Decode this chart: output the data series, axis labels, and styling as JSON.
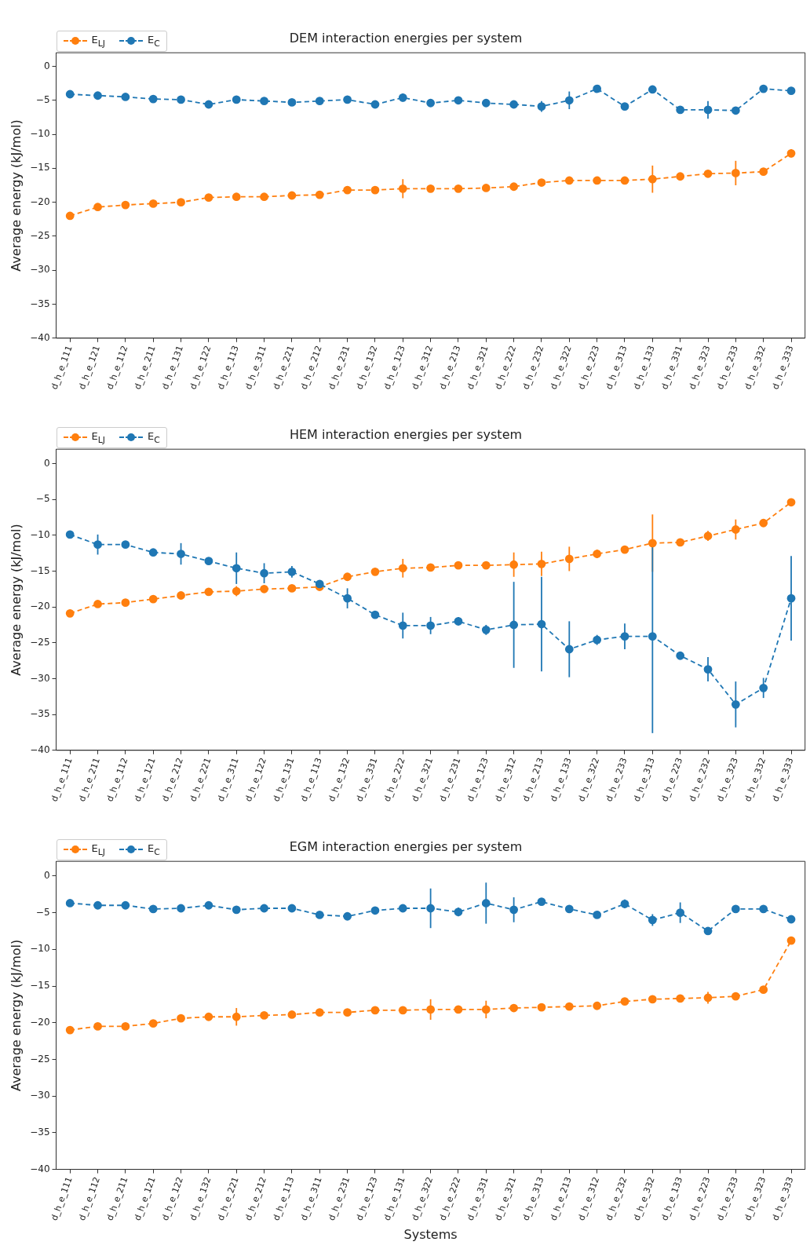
{
  "chart_data": [
    {
      "type": "line",
      "title": "DEM interaction energies per system",
      "ylabel": "Average energy (kJ/mol)",
      "legend": "top left",
      "marker": "circle",
      "line_style": "dashed",
      "ylim": [
        -40,
        2
      ],
      "yticks": [
        0,
        -5,
        -10,
        -15,
        -20,
        -25,
        -30,
        -35,
        -40
      ],
      "categories": [
        "d_h_e_111",
        "d_h_e_121",
        "d_h_e_112",
        "d_h_e_211",
        "d_h_e_131",
        "d_h_e_122",
        "d_h_e_113",
        "d_h_e_311",
        "d_h_e_221",
        "d_h_e_212",
        "d_h_e_231",
        "d_h_e_132",
        "d_h_e_123",
        "d_h_e_312",
        "d_h_e_213",
        "d_h_e_321",
        "d_h_e_222",
        "d_h_e_232",
        "d_h_e_322",
        "d_h_e_223",
        "d_h_e_313",
        "d_h_e_133",
        "d_h_e_331",
        "d_h_e_323",
        "d_h_e_233",
        "d_h_e_332",
        "d_h_e_333"
      ],
      "series": [
        {
          "name": "E$_{LJ}$",
          "color": "#ff7f0e",
          "values": [
            -22.0,
            -20.7,
            -20.4,
            -20.2,
            -20.0,
            -19.3,
            -19.2,
            -19.2,
            -19.0,
            -18.9,
            -18.2,
            -18.2,
            -18.0,
            -18.0,
            -18.0,
            -17.9,
            -17.7,
            -17.1,
            -16.8,
            -16.8,
            -16.8,
            -16.6,
            -16.2,
            -15.8,
            -15.7,
            -15.5,
            -12.8
          ],
          "errors": [
            null,
            null,
            null,
            null,
            null,
            null,
            null,
            null,
            null,
            null,
            null,
            null,
            1.4,
            null,
            null,
            null,
            null,
            null,
            null,
            null,
            null,
            2.0,
            null,
            null,
            1.8,
            null,
            0.6
          ]
        },
        {
          "name": "E$_{C}$",
          "color": "#1f77b4",
          "values": [
            -4.1,
            -4.3,
            -4.5,
            -4.8,
            -4.9,
            -5.6,
            -4.9,
            -5.1,
            -5.3,
            -5.1,
            -4.9,
            -5.6,
            -4.6,
            -5.4,
            -5.0,
            -5.4,
            -5.6,
            -5.9,
            -5.0,
            -3.3,
            -5.9,
            -3.4,
            -6.4,
            -6.4,
            -6.5,
            -3.3,
            -3.6
          ],
          "errors": [
            null,
            null,
            null,
            null,
            null,
            null,
            0.5,
            null,
            null,
            null,
            null,
            null,
            0.6,
            null,
            null,
            null,
            null,
            0.8,
            1.3,
            null,
            null,
            null,
            null,
            1.3,
            null,
            null,
            null
          ]
        }
      ]
    },
    {
      "type": "line",
      "title": "HEM interaction energies per system",
      "ylabel": "Average energy (kJ/mol)",
      "legend": "top left",
      "marker": "circle",
      "line_style": "dashed",
      "ylim": [
        -40,
        2
      ],
      "yticks": [
        0,
        -5,
        -10,
        -15,
        -20,
        -25,
        -30,
        -35,
        -40
      ],
      "categories": [
        "d_h_e_111",
        "d_h_e_211",
        "d_h_e_112",
        "d_h_e_121",
        "d_h_e_212",
        "d_h_e_221",
        "d_h_e_311",
        "d_h_e_122",
        "d_h_e_131",
        "d_h_e_113",
        "d_h_e_132",
        "d_h_e_331",
        "d_h_e_222",
        "d_h_e_321",
        "d_h_e_231",
        "d_h_e_123",
        "d_h_e_312",
        "d_h_e_213",
        "d_h_e_133",
        "d_h_e_322",
        "d_h_e_233",
        "d_h_e_313",
        "d_h_e_223",
        "d_h_e_232",
        "d_h_e_323",
        "d_h_e_332",
        "d_h_e_333"
      ],
      "series": [
        {
          "name": "E$_{LJ}$",
          "color": "#ff7f0e",
          "values": [
            -20.9,
            -19.6,
            -19.4,
            -18.9,
            -18.4,
            -17.9,
            -17.8,
            -17.5,
            -17.4,
            -17.2,
            -15.8,
            -15.1,
            -14.6,
            -14.5,
            -14.2,
            -14.2,
            -14.1,
            -14.0,
            -13.3,
            -12.6,
            -12.0,
            -11.1,
            -11.0,
            -10.1,
            -9.2,
            -8.3,
            -5.4
          ],
          "errors": [
            null,
            null,
            null,
            null,
            null,
            null,
            0.7,
            null,
            null,
            null,
            null,
            null,
            1.3,
            null,
            null,
            null,
            1.7,
            1.7,
            1.7,
            0.6,
            null,
            4.0,
            null,
            0.7,
            1.4,
            null,
            null
          ]
        },
        {
          "name": "E$_{C}$",
          "color": "#1f77b4",
          "values": [
            -9.9,
            -11.3,
            -11.3,
            -12.4,
            -12.6,
            -13.6,
            -14.6,
            -15.3,
            -15.1,
            -16.8,
            -18.8,
            -21.1,
            -22.6,
            -22.6,
            -22.0,
            -23.2,
            -22.5,
            -22.4,
            -25.9,
            -24.6,
            -24.1,
            -24.1,
            -26.8,
            -28.7,
            -33.6,
            -31.3,
            -18.8
          ],
          "errors": [
            null,
            1.4,
            null,
            null,
            1.5,
            null,
            2.2,
            1.4,
            0.8,
            null,
            1.4,
            null,
            1.8,
            1.2,
            0.6,
            0.7,
            6.0,
            6.6,
            3.9,
            0.7,
            1.8,
            13.5,
            0.5,
            1.7,
            3.2,
            1.4,
            5.9
          ]
        }
      ]
    },
    {
      "type": "line",
      "title": "EGM interaction energies per system",
      "ylabel": "Average energy (kJ/mol)",
      "xlabel": "Systems",
      "legend": "top left",
      "marker": "circle",
      "line_style": "dashed",
      "ylim": [
        -40,
        2
      ],
      "yticks": [
        0,
        -5,
        -10,
        -15,
        -20,
        -25,
        -30,
        -35,
        -40
      ],
      "categories": [
        "d_h_e_111",
        "d_h_e_112",
        "d_h_e_211",
        "d_h_e_121",
        "d_h_e_122",
        "d_h_e_132",
        "d_h_e_221",
        "d_h_e_212",
        "d_h_e_113",
        "d_h_e_311",
        "d_h_e_231",
        "d_h_e_123",
        "d_h_e_131",
        "d_h_e_322",
        "d_h_e_222",
        "d_h_e_331",
        "d_h_e_321",
        "d_h_e_313",
        "d_h_e_213",
        "d_h_e_312",
        "d_h_e_232",
        "d_h_e_332",
        "d_h_e_133",
        "d_h_e_223",
        "d_h_e_233",
        "d_h_e_323",
        "d_h_e_333"
      ],
      "series": [
        {
          "name": "E$_{LJ}$",
          "color": "#ff7f0e",
          "values": [
            -21.0,
            -20.5,
            -20.5,
            -20.1,
            -19.4,
            -19.2,
            -19.2,
            -19.0,
            -18.9,
            -18.6,
            -18.6,
            -18.3,
            -18.3,
            -18.2,
            -18.2,
            -18.2,
            -18.0,
            -17.9,
            -17.8,
            -17.7,
            -17.1,
            -16.8,
            -16.7,
            -16.6,
            -16.4,
            -15.5,
            -8.8
          ],
          "errors": [
            null,
            null,
            null,
            null,
            null,
            null,
            1.2,
            null,
            null,
            null,
            null,
            null,
            null,
            1.4,
            null,
            1.2,
            null,
            null,
            null,
            null,
            null,
            null,
            null,
            0.8,
            null,
            null,
            null
          ]
        },
        {
          "name": "E$_{C}$",
          "color": "#1f77b4",
          "values": [
            -3.7,
            -4.0,
            -4.0,
            -4.5,
            -4.4,
            -4.0,
            -4.6,
            -4.4,
            -4.4,
            -5.3,
            -5.5,
            -4.7,
            -4.4,
            -4.4,
            -4.9,
            -3.7,
            -4.6,
            -3.5,
            -4.5,
            -5.3,
            -3.8,
            -6.0,
            -5.0,
            -7.5,
            -4.5,
            -4.5,
            -5.9
          ],
          "errors": [
            null,
            null,
            null,
            null,
            null,
            0.5,
            null,
            null,
            null,
            null,
            null,
            null,
            null,
            2.7,
            0.6,
            2.8,
            1.7,
            null,
            null,
            null,
            0.6,
            0.8,
            1.4,
            null,
            0.5,
            null,
            null
          ]
        }
      ]
    }
  ]
}
